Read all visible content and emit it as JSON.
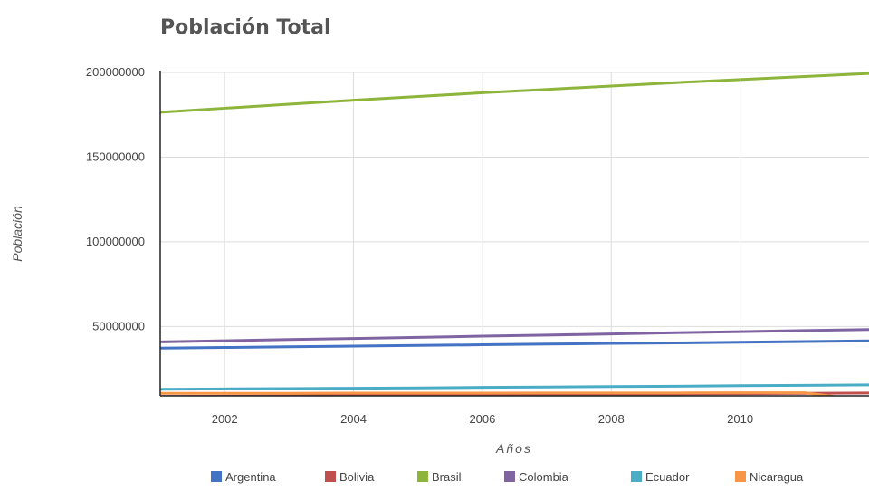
{
  "chart_data": {
    "type": "line",
    "title": "Población Total",
    "xlabel": "Años",
    "ylabel": "Población",
    "x": [
      2001,
      2002,
      2003,
      2004,
      2005,
      2006,
      2007,
      2008,
      2009,
      2010,
      2011,
      2012
    ],
    "xlim": [
      2001,
      2012
    ],
    "ylim": [
      9000000,
      200000000
    ],
    "x_ticks": [
      "2002",
      "2004",
      "2006",
      "2008",
      "2010"
    ],
    "y_ticks": [
      "50000000",
      "100000000",
      "150000000",
      "200000000"
    ],
    "grid": true,
    "legend_position": "bottom",
    "series": [
      {
        "name": "Argentina",
        "color": "#4472c4",
        "values": [
          37200000,
          37600000,
          38000000,
          38400000,
          38800000,
          39200000,
          39600000,
          40000000,
          40300000,
          40700000,
          41100000,
          41500000
        ]
      },
      {
        "name": "Bolivia",
        "color": "#c0504d",
        "values": [
          8600000,
          8800000,
          8900000,
          9100000,
          9300000,
          9500000,
          9700000,
          9900000,
          10100000,
          10300000,
          10500000,
          10700000
        ]
      },
      {
        "name": "Brasil",
        "color": "#8db53c",
        "values": [
          176500000,
          178900000,
          181300000,
          183600000,
          185800000,
          188000000,
          190000000,
          192000000,
          194000000,
          195800000,
          197600000,
          199400000
        ]
      },
      {
        "name": "Colombia",
        "color": "#8064a2",
        "values": [
          40900000,
          41600000,
          42300000,
          42900000,
          43600000,
          44300000,
          44900000,
          45600000,
          46300000,
          46900000,
          47600000,
          48200000
        ]
      },
      {
        "name": "Ecuador",
        "color": "#4bacc6",
        "values": [
          12900000,
          13100000,
          13300000,
          13500000,
          13700000,
          14000000,
          14200000,
          14500000,
          14700000,
          15000000,
          15200000,
          15500000
        ]
      },
      {
        "name": "Nicaragua",
        "color": "#f79646",
        "values": [
          10500000,
          10500000,
          10500000,
          10600000,
          10600000,
          10600000,
          10700000,
          10700000,
          10700000,
          10800000,
          10800000,
          6000000
        ]
      }
    ]
  }
}
